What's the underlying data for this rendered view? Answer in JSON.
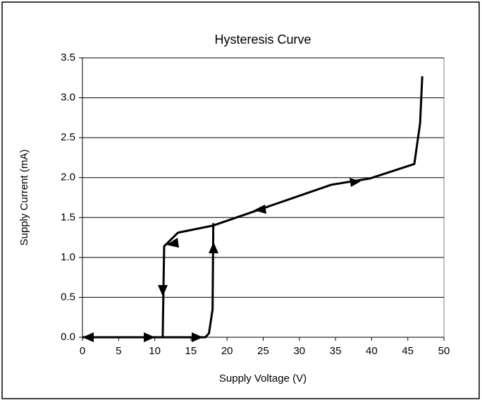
{
  "chart_data": {
    "type": "line",
    "title": "Hysteresis Curve",
    "xlabel": "Supply Voltage (V)",
    "ylabel": "Supply Current (mA)",
    "xlim": [
      0,
      50
    ],
    "xticks": [
      0,
      5,
      10,
      15,
      20,
      25,
      30,
      35,
      40,
      45,
      50
    ],
    "ylim": [
      0,
      3.5
    ],
    "yticks": [
      {
        "value": 0,
        "label": "0.0"
      },
      0.5,
      {
        "value": 1,
        "label": "1.0"
      },
      1.5,
      {
        "value": 2,
        "label": "2.0"
      },
      2.5,
      {
        "value": 3,
        "label": "3.0"
      },
      3.5
    ],
    "grid": true,
    "series": [
      {
        "color": "#000000",
        "x": [
          0,
          17,
          17.5,
          18,
          18.1
        ],
        "values": [
          0,
          0,
          0.05,
          0.35,
          1.43
        ]
      },
      {
        "color": "#000000",
        "x": [
          11.1,
          11.3,
          13.2,
          18.1,
          34.4,
          39.8,
          45.9,
          46.7,
          47
        ],
        "values": [
          0,
          1.14,
          1.31,
          1.4,
          1.91,
          1.99,
          2.17,
          2.68,
          3.27
        ]
      }
    ]
  }
}
